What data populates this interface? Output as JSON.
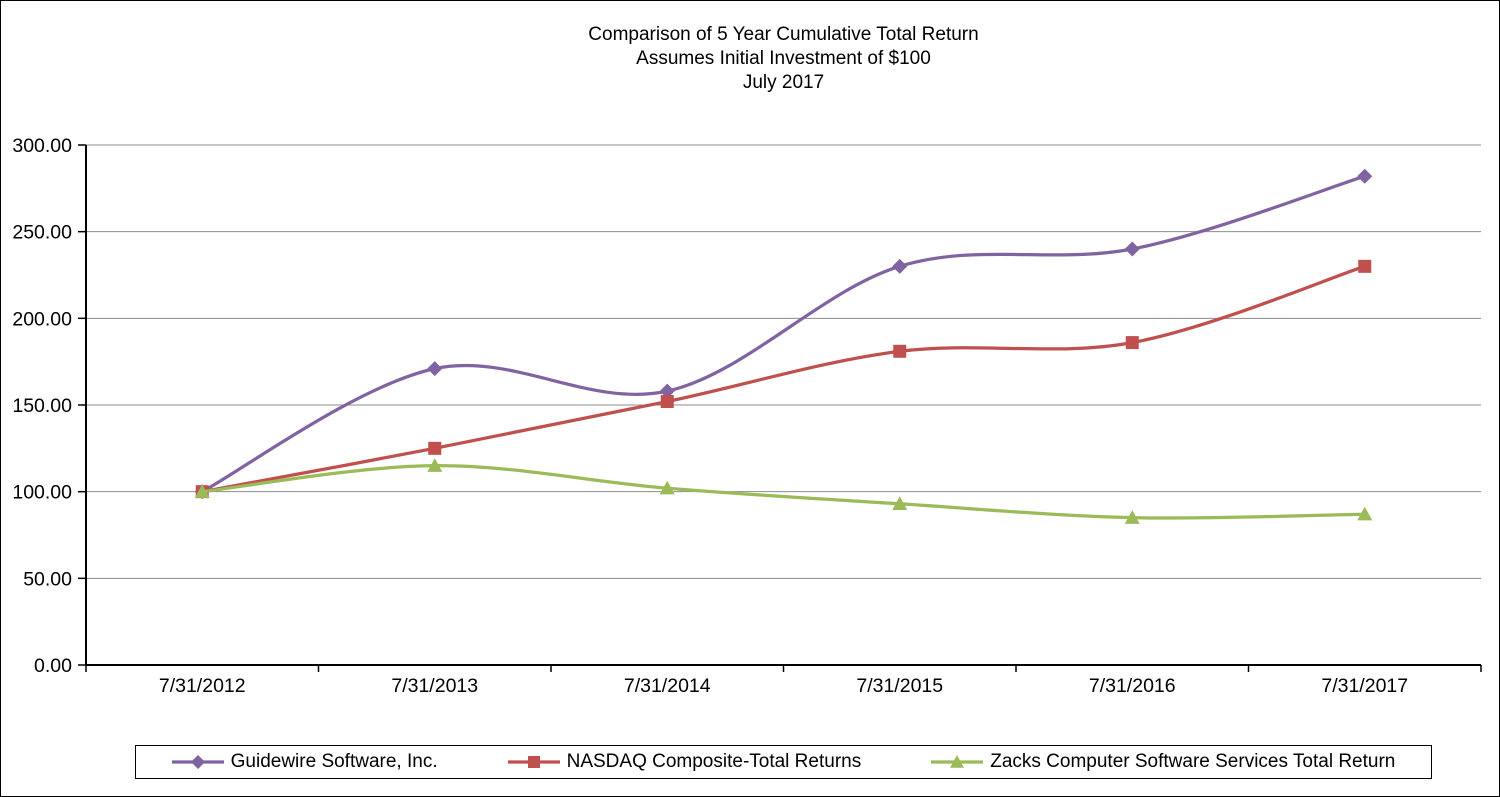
{
  "chart_data": {
    "type": "line",
    "smooth": true,
    "title": "Comparison of 5 Year Cumulative Total Return",
    "subtitle": "Assumes Initial Investment of $100",
    "period_label": "July 2017",
    "x": [
      "7/31/2012",
      "7/31/2013",
      "7/31/2014",
      "7/31/2015",
      "7/31/2016",
      "7/31/2017"
    ],
    "series": [
      {
        "name": "Guidewire Software, Inc.",
        "marker": "diamond",
        "color": "#8064A2",
        "values": [
          100.0,
          171.0,
          158.0,
          230.0,
          240.0,
          282.0
        ]
      },
      {
        "name": "NASDAQ Composite-Total Returns",
        "marker": "square",
        "color": "#C0504D",
        "values": [
          100.0,
          125.0,
          152.0,
          181.0,
          186.0,
          230.0
        ]
      },
      {
        "name": "Zacks Computer Software Services Total Return",
        "marker": "triangle",
        "color": "#9BBB59",
        "values": [
          100.0,
          115.0,
          102.0,
          93.0,
          85.0,
          87.0
        ]
      }
    ],
    "ylim": [
      0,
      300
    ],
    "ytick_step": 50,
    "ytick_decimals": 2,
    "grid": true,
    "gridline_color": "#8C8C8C",
    "axis_color": "#000000",
    "legend_position": "bottom"
  }
}
